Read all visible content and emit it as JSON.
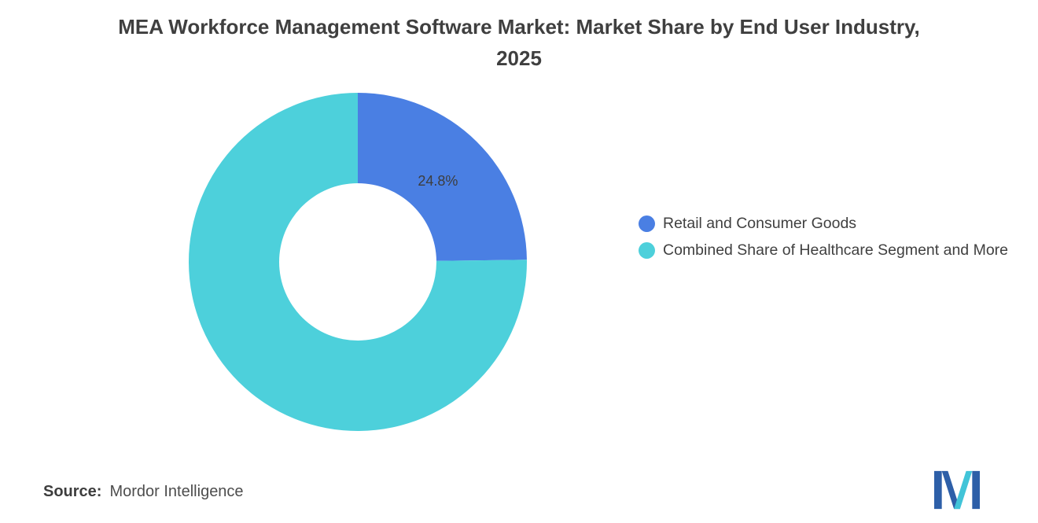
{
  "chart_data": {
    "type": "pie",
    "donut": true,
    "title": "MEA Workforce Management Software Market: Market Share by End User Industry, 2025",
    "labels": [
      "Retail and Consumer Goods",
      "Combined Share of Healthcare Segment and More"
    ],
    "values": [
      24.8,
      75.2
    ],
    "colors": [
      "#4A7FE3",
      "#4DD0DB"
    ],
    "data_labels": [
      "24.8%",
      ""
    ],
    "start_angle_deg": 0,
    "direction": "clockwise",
    "legend_position": "right"
  },
  "source": {
    "label": "Source:",
    "value": "Mordor Intelligence"
  },
  "logo": {
    "name": "mordor-intelligence-logo",
    "blue": "#2D5FA8",
    "teal": "#41C4D8"
  }
}
